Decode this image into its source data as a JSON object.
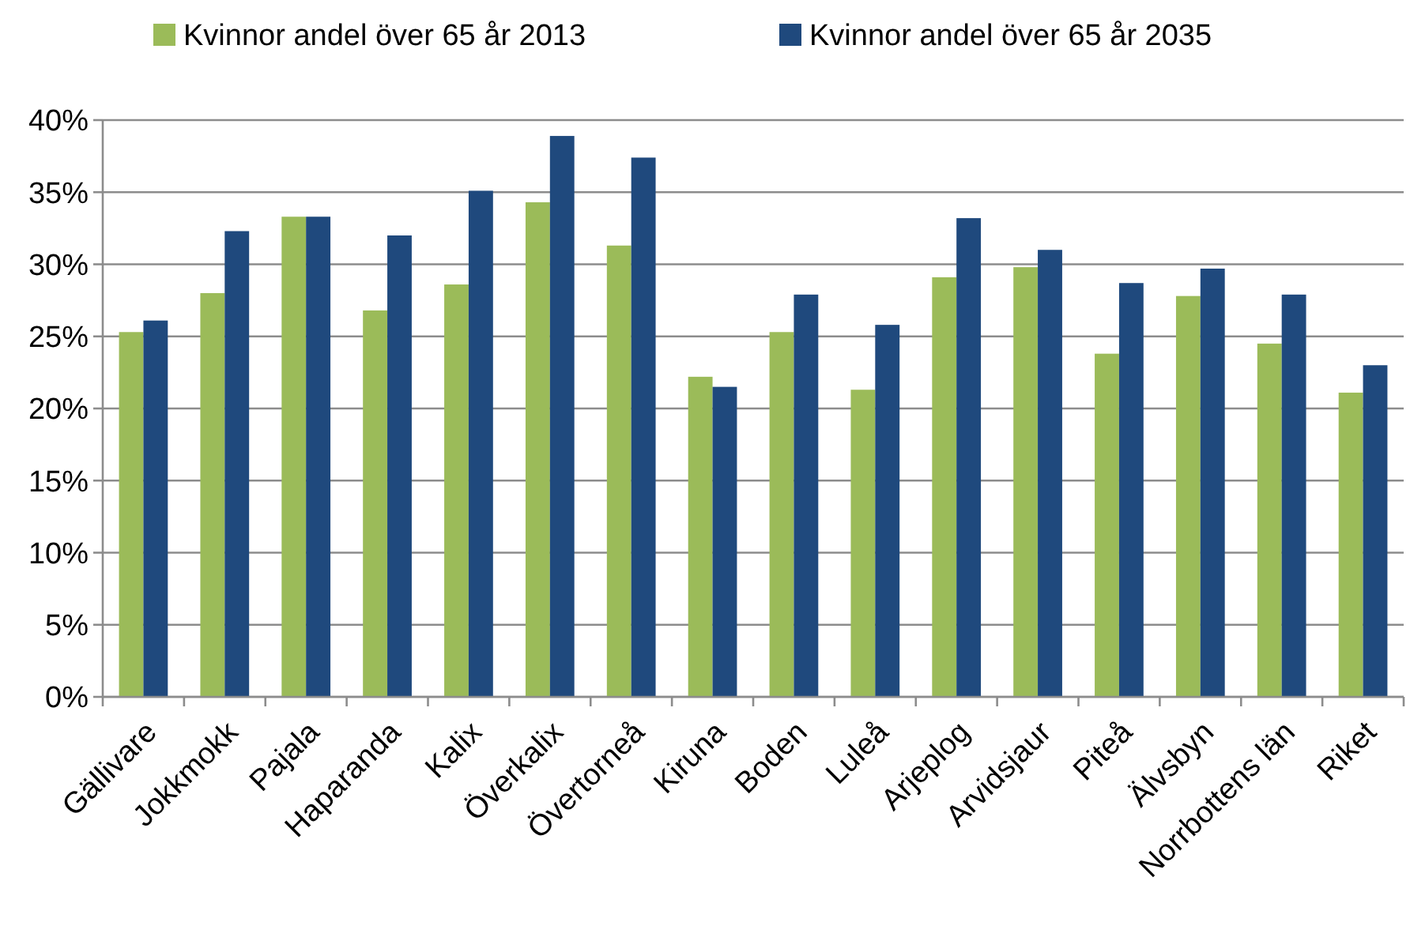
{
  "chart_data": {
    "type": "bar",
    "categories": [
      "Gällivare",
      "Jokkmokk",
      "Pajala",
      "Haparanda",
      "Kalix",
      "Överkalix",
      "Övertorneå",
      "Kiruna",
      "Boden",
      "Luleå",
      "Arjeplog",
      "Arvidsjaur",
      "Piteå",
      "Älvsbyn",
      "Norrbottens län",
      "Riket"
    ],
    "series": [
      {
        "name": "Kvinnor andel över 65 år 2013",
        "color": "#9bbb59",
        "values": [
          25.3,
          28.0,
          33.3,
          26.8,
          28.6,
          34.3,
          31.3,
          22.2,
          25.3,
          21.3,
          29.1,
          29.8,
          23.8,
          27.8,
          24.5,
          21.1
        ]
      },
      {
        "name": "Kvinnor andel över 65 år 2035",
        "color": "#1f497d",
        "values": [
          26.1,
          32.3,
          33.3,
          32.0,
          35.1,
          38.9,
          37.4,
          21.5,
          27.9,
          25.8,
          33.2,
          31.0,
          28.7,
          29.7,
          27.9,
          23.0
        ]
      }
    ],
    "ylim": [
      0,
      40
    ],
    "yticks": [
      {
        "value": 0,
        "label": "0%"
      },
      {
        "value": 5,
        "label": "5%"
      },
      {
        "value": 10,
        "label": "10%"
      },
      {
        "value": 15,
        "label": "15%"
      },
      {
        "value": 20,
        "label": "20%"
      },
      {
        "value": 25,
        "label": "25%"
      },
      {
        "value": 30,
        "label": "30%"
      },
      {
        "value": 35,
        "label": "35%"
      },
      {
        "value": 40,
        "label": "40%"
      }
    ],
    "grid": "y",
    "legend": "top"
  }
}
